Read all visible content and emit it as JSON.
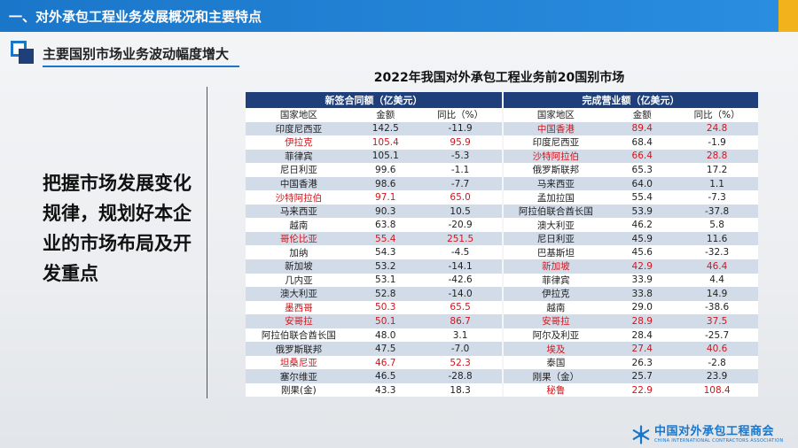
{
  "header": {
    "title": "一、对外承包工程业务发展概况和主要特点"
  },
  "subtitle": "主要国别市场业务波动幅度增大",
  "left_text": "把握市场发展变化规律，规划好本企业的市场布局及开发重点",
  "table": {
    "title": "2022年我国对外承包工程业务前20国别市场",
    "groups": [
      "新签合同额（亿美元）",
      "完成营业额（亿美元）"
    ],
    "columns": [
      "国家地区",
      "金额",
      "同比（%）",
      "国家地区",
      "金额",
      "同比（%）"
    ],
    "rows": [
      {
        "n1": "印度尼西亚",
        "a1": "142.5",
        "y1": "-11.9",
        "r1": false,
        "n2": "中国香港",
        "a2": "89.4",
        "y2": "24.8",
        "r2": true
      },
      {
        "n1": "伊拉克",
        "a1": "105.4",
        "y1": "95.9",
        "r1": true,
        "n2": "印度尼西亚",
        "a2": "68.4",
        "y2": "-1.9",
        "r2": false
      },
      {
        "n1": "菲律宾",
        "a1": "105.1",
        "y1": "-5.3",
        "r1": false,
        "n2": "沙特阿拉伯",
        "a2": "66.4",
        "y2": "28.8",
        "r2": true
      },
      {
        "n1": "尼日利亚",
        "a1": "99.6",
        "y1": "-1.1",
        "r1": false,
        "n2": "俄罗斯联邦",
        "a2": "65.3",
        "y2": "17.2",
        "r2": false
      },
      {
        "n1": "中国香港",
        "a1": "98.6",
        "y1": "-7.7",
        "r1": false,
        "n2": "马来西亚",
        "a2": "64.0",
        "y2": "1.1",
        "r2": false
      },
      {
        "n1": "沙特阿拉伯",
        "a1": "97.1",
        "y1": "65.0",
        "r1": true,
        "n2": "孟加拉国",
        "a2": "55.4",
        "y2": "-7.3",
        "r2": false
      },
      {
        "n1": "马来西亚",
        "a1": "90.3",
        "y1": "10.5",
        "r1": false,
        "n2": "阿拉伯联合酋长国",
        "a2": "53.9",
        "y2": "-37.8",
        "r2": false
      },
      {
        "n1": "越南",
        "a1": "63.8",
        "y1": "-20.9",
        "r1": false,
        "n2": "澳大利亚",
        "a2": "46.2",
        "y2": "5.8",
        "r2": false
      },
      {
        "n1": "哥伦比亚",
        "a1": "55.4",
        "y1": "251.5",
        "r1": true,
        "n2": "尼日利亚",
        "a2": "45.9",
        "y2": "11.6",
        "r2": false
      },
      {
        "n1": "加纳",
        "a1": "54.3",
        "y1": "-4.5",
        "r1": false,
        "n2": "巴基斯坦",
        "a2": "45.6",
        "y2": "-32.3",
        "r2": false
      },
      {
        "n1": "新加坡",
        "a1": "53.2",
        "y1": "-14.1",
        "r1": false,
        "n2": "新加坡",
        "a2": "42.9",
        "y2": "46.4",
        "r2": true
      },
      {
        "n1": "几内亚",
        "a1": "53.1",
        "y1": "-42.6",
        "r1": false,
        "n2": "菲律宾",
        "a2": "33.9",
        "y2": "4.4",
        "r2": false
      },
      {
        "n1": "澳大利亚",
        "a1": "52.8",
        "y1": "-14.0",
        "r1": false,
        "n2": "伊拉克",
        "a2": "33.8",
        "y2": "14.9",
        "r2": false
      },
      {
        "n1": "墨西哥",
        "a1": "50.3",
        "y1": "65.5",
        "r1": true,
        "n2": "越南",
        "a2": "29.0",
        "y2": "-38.6",
        "r2": false
      },
      {
        "n1": "安哥拉",
        "a1": "50.1",
        "y1": "86.7",
        "r1": true,
        "n2": "安哥拉",
        "a2": "28.9",
        "y2": "37.5",
        "r2": true
      },
      {
        "n1": "阿拉伯联合酋长国",
        "a1": "48.0",
        "y1": "3.1",
        "r1": false,
        "n2": "阿尔及利亚",
        "a2": "28.4",
        "y2": "-25.7",
        "r2": false
      },
      {
        "n1": "俄罗斯联邦",
        "a1": "47.5",
        "y1": "-7.0",
        "r1": false,
        "n2": "埃及",
        "a2": "27.4",
        "y2": "40.6",
        "r2": true
      },
      {
        "n1": "坦桑尼亚",
        "a1": "46.7",
        "y1": "52.3",
        "r1": true,
        "n2": "泰国",
        "a2": "26.3",
        "y2": "-2.8",
        "r2": false
      },
      {
        "n1": "塞尔维亚",
        "a1": "46.5",
        "y1": "-28.8",
        "r1": false,
        "n2": "刚果（金）",
        "a2": "25.7",
        "y2": "23.9",
        "r2": false
      },
      {
        "n1": "刚果(金)",
        "a1": "43.3",
        "y1": "18.3",
        "r1": false,
        "n2": "秘鲁",
        "a2": "22.9",
        "y2": "108.4",
        "r2": true
      }
    ]
  },
  "logo": {
    "cn": "中国对外承包工程商会",
    "en": "CHINA INTERNATIONAL CONTRACTORS ASSOCIATION"
  },
  "colors": {
    "header": "#1a76c9",
    "accent": "#f2b21b",
    "table_head": "#1f3f7a",
    "highlight": "#d4141b"
  }
}
